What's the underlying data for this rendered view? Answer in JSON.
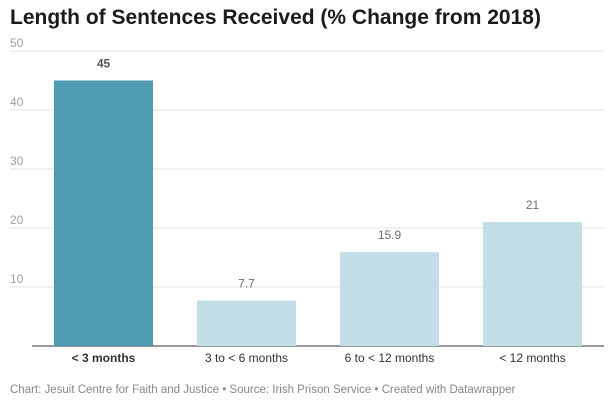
{
  "chart_data": {
    "type": "bar",
    "title": "Length of Sentences Received (% Change from 2018)",
    "categories": [
      "< 3 months",
      "3 to < 6 months",
      "6 to < 12 months",
      "< 12 months"
    ],
    "values": [
      45,
      7.7,
      15.9,
      21
    ],
    "value_labels": [
      "45",
      "7.7",
      "15.9",
      "21"
    ],
    "highlight_index": 0,
    "ylim": [
      0,
      50
    ],
    "yticks": [
      10,
      20,
      30,
      40,
      50
    ],
    "ytick_labels": [
      "10",
      "20",
      "30",
      "40",
      "50"
    ],
    "grid": true,
    "xlabel": "",
    "ylabel": "",
    "colors": {
      "highlight": "#4e9ab0",
      "bar": "#c2dde5",
      "grid": "#e3e3e3",
      "tick_text": "#a0a0a0",
      "value_text": "#6e6e6e",
      "value_text_highlight": "#555555",
      "category_text": "#333333",
      "baseline": "#333333"
    }
  },
  "footer": {
    "text": "Chart: Jesuit Centre for Faith and Justice • Source: Irish Prison Service • Created with Datawrapper"
  }
}
